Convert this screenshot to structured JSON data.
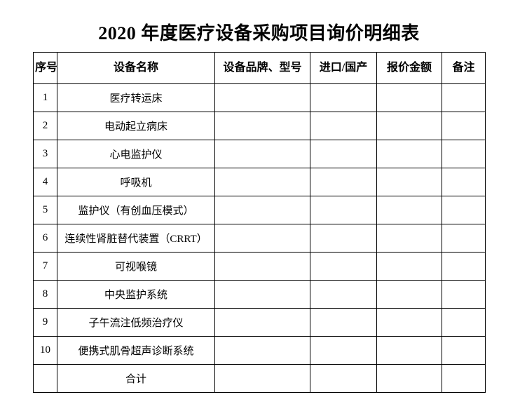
{
  "title": "2020 年度医疗设备采购项目询价明细表",
  "colors": {
    "border": "#000000",
    "text": "#000000",
    "background": "#ffffff"
  },
  "table": {
    "headers": {
      "serial": "序号",
      "device_name": "设备名称",
      "brand_model": "设备品牌、型号",
      "origin": "进口/国产",
      "price": "报价金额",
      "note": "备注"
    },
    "rows": [
      {
        "no": "1",
        "name": "医疗转运床",
        "brand": "",
        "origin": "",
        "price": "",
        "note": ""
      },
      {
        "no": "2",
        "name": "电动起立病床",
        "brand": "",
        "origin": "",
        "price": "",
        "note": ""
      },
      {
        "no": "3",
        "name": "心电监护仪",
        "brand": "",
        "origin": "",
        "price": "",
        "note": ""
      },
      {
        "no": "4",
        "name": "呼吸机",
        "brand": "",
        "origin": "",
        "price": "",
        "note": ""
      },
      {
        "no": "5",
        "name": "监护仪（有创血压模式）",
        "brand": "",
        "origin": "",
        "price": "",
        "note": ""
      },
      {
        "no": "6",
        "name": "连续性肾脏替代装置（CRRT）",
        "brand": "",
        "origin": "",
        "price": "",
        "note": ""
      },
      {
        "no": "7",
        "name": "可视喉镜",
        "brand": "",
        "origin": "",
        "price": "",
        "note": ""
      },
      {
        "no": "8",
        "name": "中央监护系统",
        "brand": "",
        "origin": "",
        "price": "",
        "note": ""
      },
      {
        "no": "9",
        "name": "子午流注低频治疗仪",
        "brand": "",
        "origin": "",
        "price": "",
        "note": ""
      },
      {
        "no": "10",
        "name": "便携式肌骨超声诊断系统",
        "brand": "",
        "origin": "",
        "price": "",
        "note": ""
      },
      {
        "no": "",
        "name": "合计",
        "brand": "",
        "origin": "",
        "price": "",
        "note": ""
      }
    ]
  }
}
